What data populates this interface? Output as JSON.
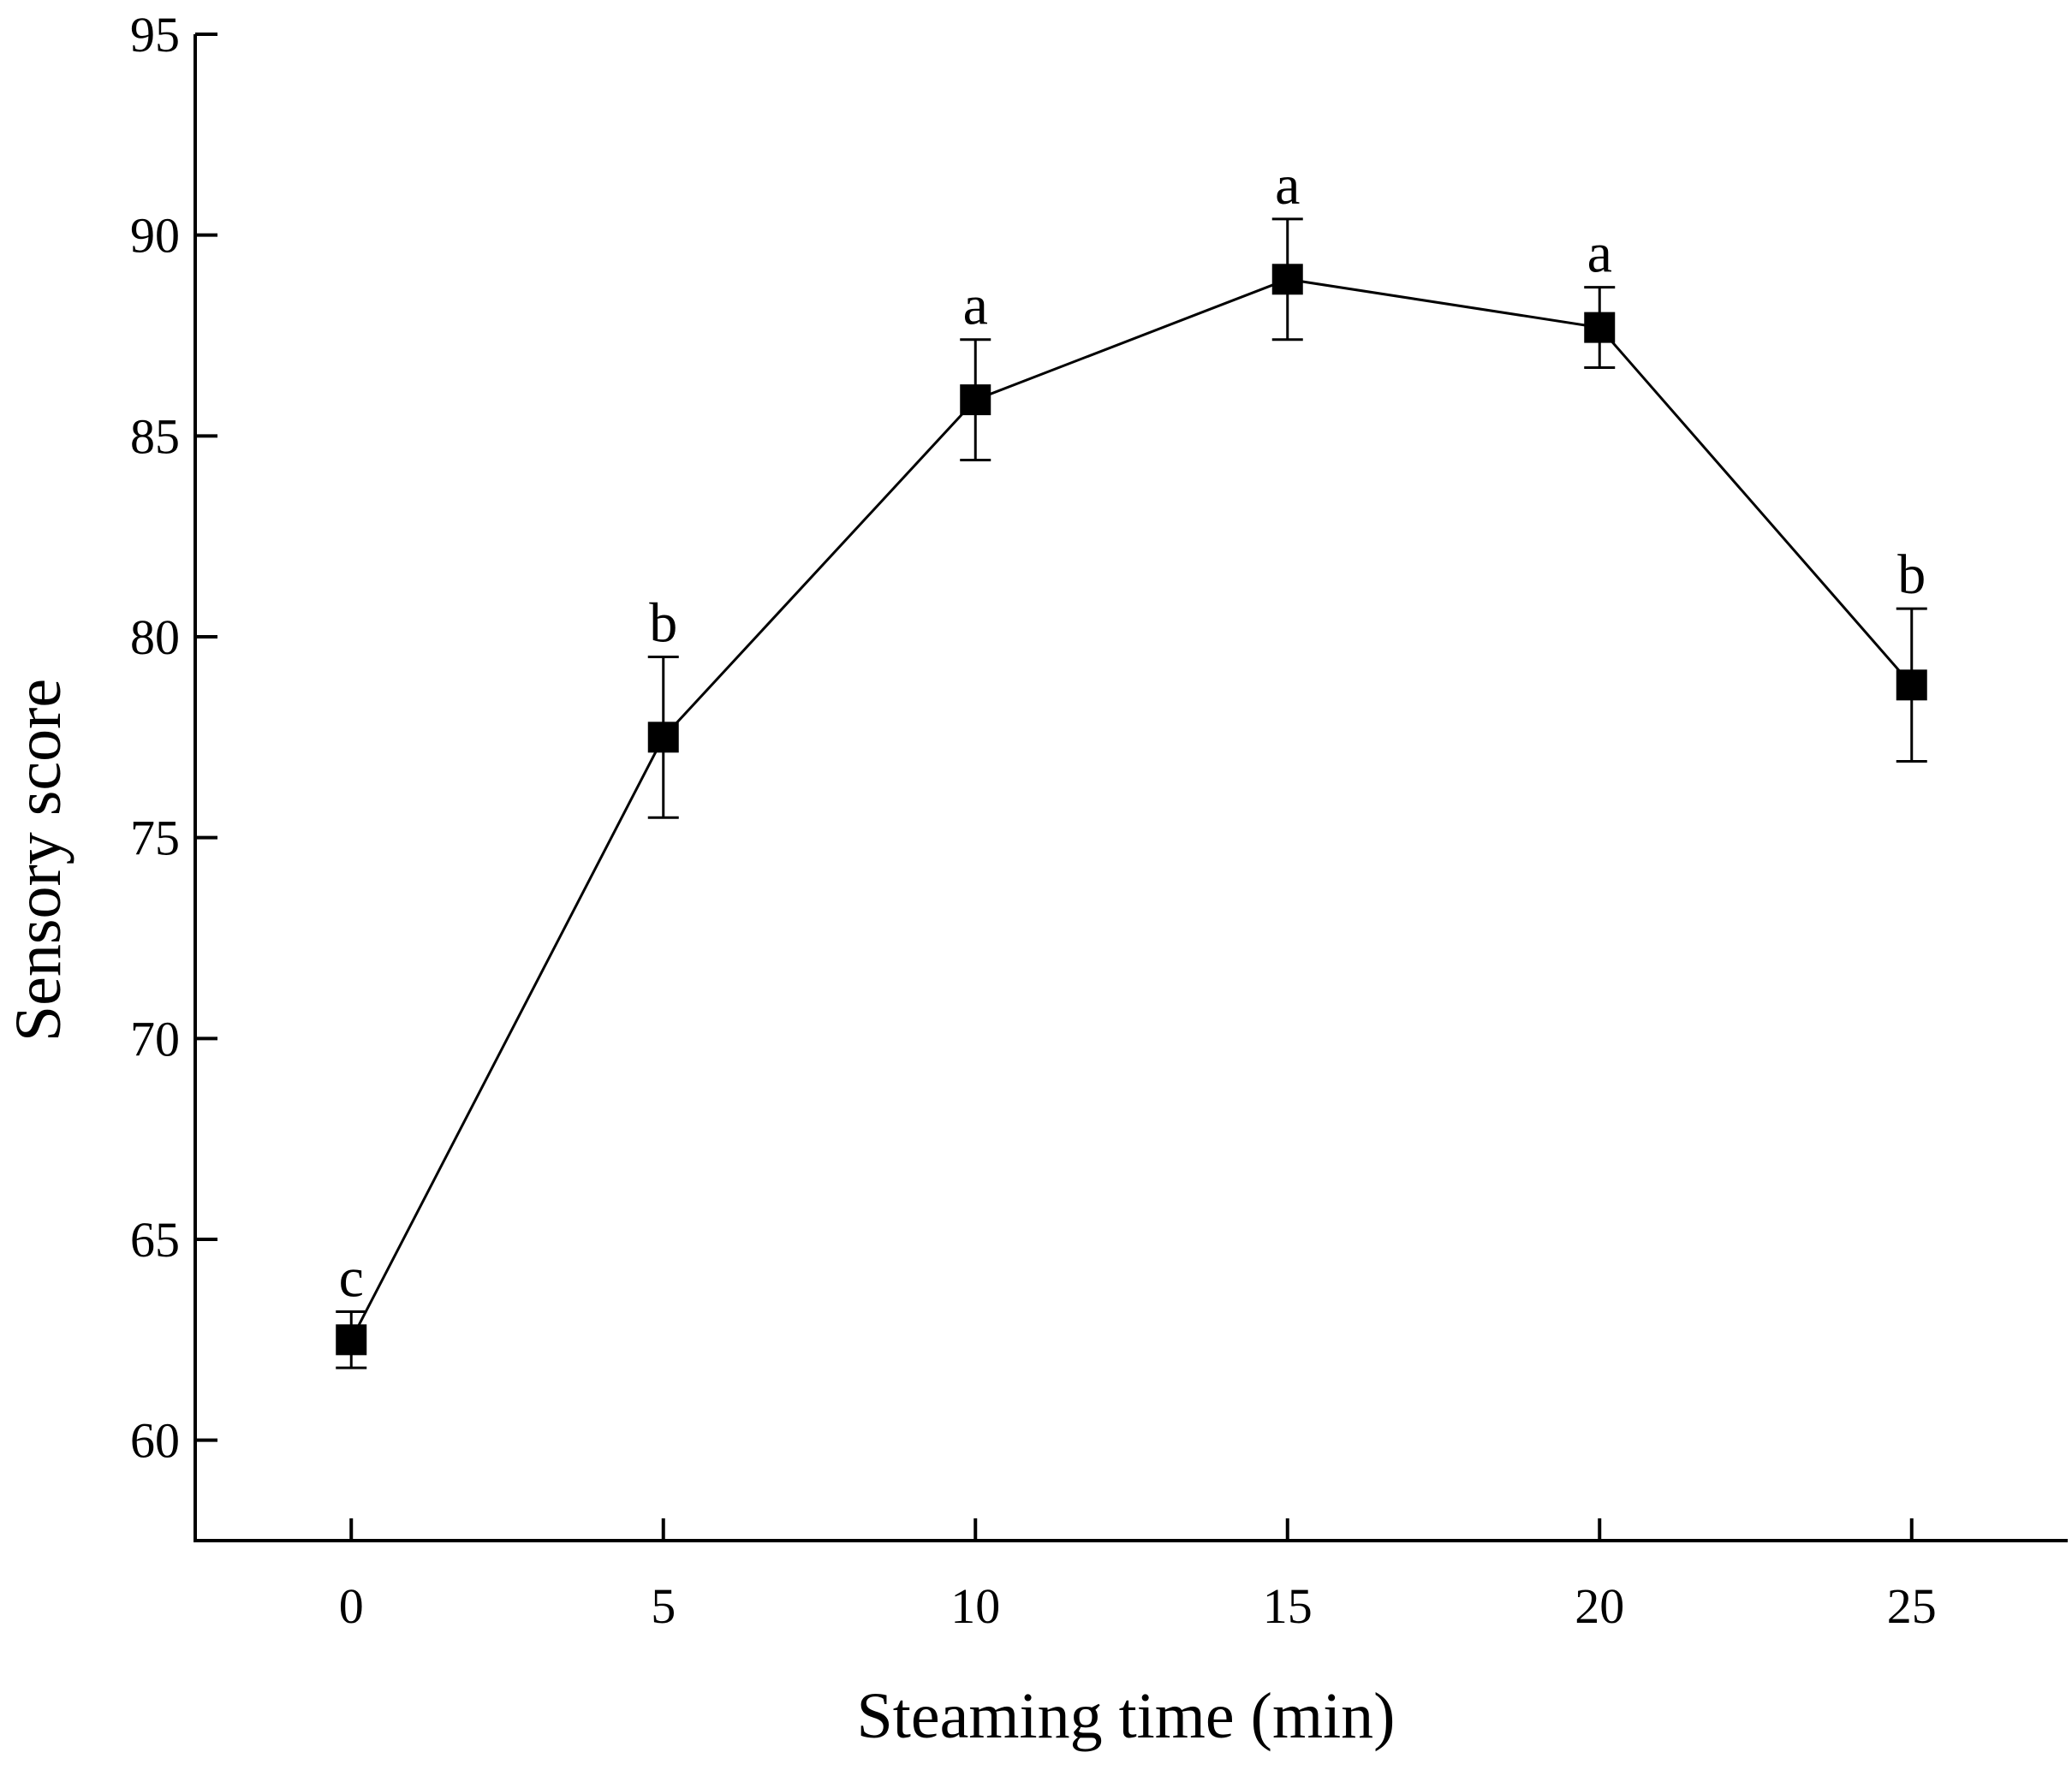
{
  "chart_data": {
    "type": "line",
    "title": "",
    "xlabel": "Steaming time (min)",
    "ylabel": "Sensory score",
    "xlim": [
      -2.5,
      27.5
    ],
    "ylim": [
      57.5,
      95
    ],
    "xticks": [
      0,
      5,
      10,
      15,
      20,
      25
    ],
    "yticks": [
      60,
      65,
      70,
      75,
      80,
      85,
      90,
      95
    ],
    "grid": false,
    "series": [
      {
        "name": "Sensory score",
        "x": [
          0,
          5,
          10,
          15,
          20,
          25
        ],
        "values": [
          62.5,
          77.5,
          85.9,
          88.9,
          87.7,
          78.8
        ],
        "error": [
          0.7,
          2.0,
          1.5,
          1.5,
          1.0,
          1.9
        ],
        "labels": [
          "c",
          "b",
          "a",
          "a",
          "a",
          "b"
        ],
        "color": "#000000",
        "marker": "square"
      }
    ]
  }
}
